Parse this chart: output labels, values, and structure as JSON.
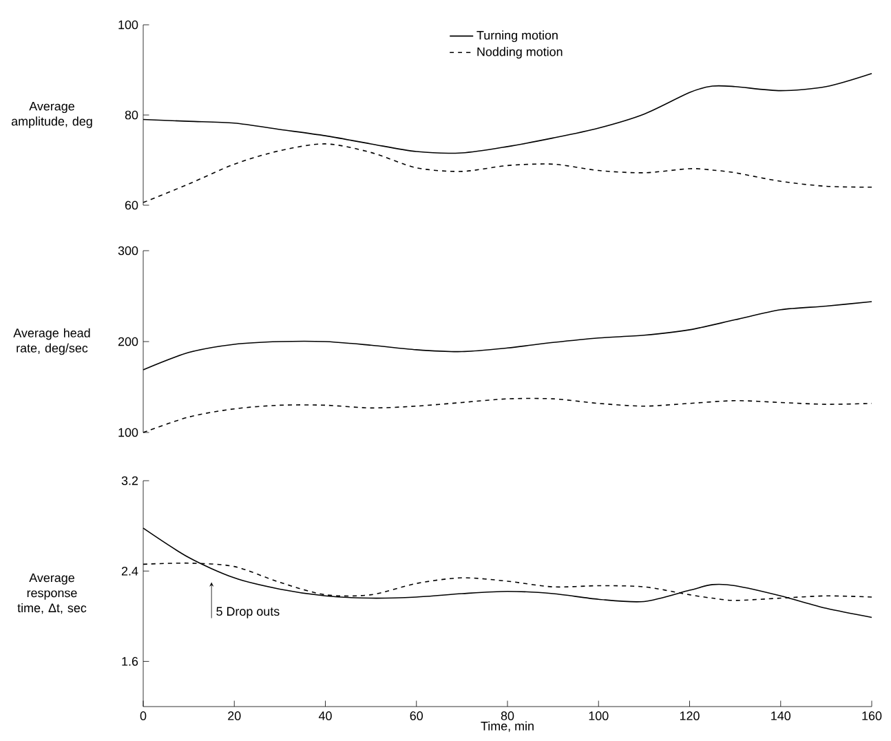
{
  "chart_data": [
    {
      "type": "line",
      "ylabel": "Average amplitude, deg",
      "legend": "top",
      "tick_labels": "y",
      "x": [
        0,
        10,
        20,
        30,
        40,
        50,
        60,
        70,
        80,
        90,
        100,
        110,
        120,
        125,
        130,
        140,
        150,
        160
      ],
      "xlim": [
        0,
        160
      ],
      "xticks": [
        0,
        20,
        40,
        60,
        80,
        100,
        120,
        140,
        160
      ],
      "ylim": [
        60,
        100
      ],
      "yticks": [
        60,
        80,
        100
      ],
      "series": [
        {
          "name": "Turning motion",
          "color": "#000000",
          "line_style": "solid",
          "values": [
            79.0,
            78.6,
            78.2,
            76.8,
            75.4,
            73.6,
            71.9,
            71.6,
            73.0,
            74.9,
            77.1,
            80.2,
            85.0,
            86.4,
            86.3,
            85.4,
            86.3,
            89.2
          ]
        },
        {
          "name": "Nodding motion",
          "color": "#000000",
          "line_style": "dashed",
          "values": [
            60.6,
            64.7,
            69.1,
            72.1,
            73.6,
            71.7,
            68.3,
            67.5,
            68.8,
            69.1,
            67.7,
            67.2,
            68.1,
            67.8,
            67.2,
            65.3,
            64.2,
            64.0
          ]
        }
      ]
    },
    {
      "type": "line",
      "ylabel": "Average head rate, deg/sec",
      "tick_labels": "y",
      "x": [
        0,
        10,
        20,
        30,
        40,
        50,
        60,
        70,
        80,
        90,
        100,
        110,
        120,
        130,
        140,
        150,
        160
      ],
      "xlim": [
        0,
        160
      ],
      "xticks": [
        0,
        20,
        40,
        60,
        80,
        100,
        120,
        140,
        160
      ],
      "ylim": [
        100,
        300
      ],
      "yticks": [
        100,
        200,
        300
      ],
      "series": [
        {
          "color": "#000000",
          "line_style": "solid",
          "values": [
            169,
            188,
            197,
            200,
            200,
            196,
            191,
            189,
            193,
            199,
            204,
            207,
            213,
            224,
            235,
            239,
            244
          ]
        },
        {
          "color": "#000000",
          "line_style": "dashed",
          "values": [
            100,
            117,
            126,
            130,
            130,
            127,
            129,
            133,
            137,
            137,
            132,
            129,
            132,
            135,
            133,
            131,
            132
          ]
        }
      ]
    },
    {
      "type": "line",
      "ylabel": "Average response time, Δt, sec",
      "xlabel": "Time, min",
      "x": [
        0,
        10,
        20,
        30,
        40,
        50,
        60,
        70,
        80,
        90,
        100,
        110,
        120,
        125,
        130,
        140,
        150,
        160
      ],
      "xlim": [
        0,
        160
      ],
      "xticks": [
        0,
        20,
        40,
        60,
        80,
        100,
        120,
        140,
        160
      ],
      "ylim": [
        1.2,
        3.2
      ],
      "yticks": [
        1.6,
        2.4,
        3.2
      ],
      "annotations": [
        {
          "text": "5 Drop outs",
          "x": 15,
          "y": 2.3
        }
      ],
      "series": [
        {
          "color": "#000000",
          "line_style": "solid",
          "values": [
            2.78,
            2.52,
            2.34,
            2.24,
            2.18,
            2.16,
            2.17,
            2.2,
            2.22,
            2.2,
            2.15,
            2.13,
            2.23,
            2.28,
            2.27,
            2.18,
            2.07,
            1.99
          ]
        },
        {
          "color": "#000000",
          "line_style": "dashed",
          "values": [
            2.46,
            2.47,
            2.44,
            2.3,
            2.19,
            2.19,
            2.29,
            2.34,
            2.31,
            2.26,
            2.27,
            2.26,
            2.19,
            2.16,
            2.14,
            2.16,
            2.18,
            2.17
          ]
        }
      ]
    }
  ]
}
